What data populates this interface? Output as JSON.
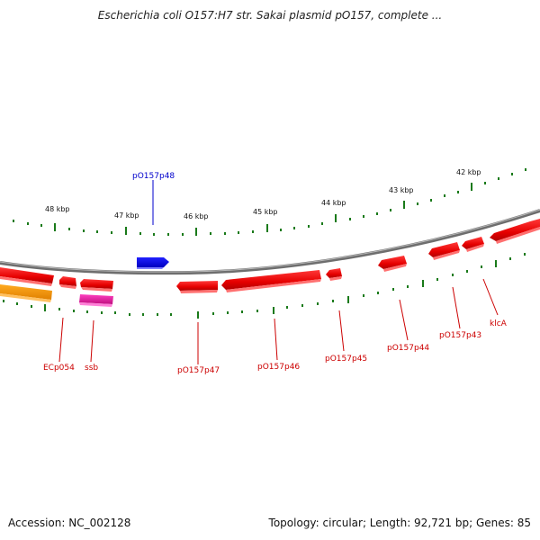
{
  "title": "Escherichia coli O157:H7 str. Sakai plasmid pO157, complete ...",
  "footer": {
    "accession": "Accession: NC_002128",
    "topology": "Topology: circular; Length: 92,721 bp; Genes: 85"
  },
  "colors": {
    "gene_forward": "#0000ee",
    "gene_reverse": "#ee0000",
    "gene_label_red": "#cc0000",
    "gene_label_blue": "#0000cc",
    "ssb_gene": "#e020a0",
    "orange_gene": "#ff9900",
    "backbone": "#888888",
    "ticks": "#1a7a1a"
  },
  "kbp_labels": [
    {
      "id": "kbp-42",
      "label": "42 kbp"
    },
    {
      "id": "kbp-43",
      "label": "43 kbp"
    },
    {
      "id": "kbp-44",
      "label": "44 kbp"
    },
    {
      "id": "kbp-45",
      "label": "45 kbp"
    },
    {
      "id": "kbp-46",
      "label": "46 kbp"
    },
    {
      "id": "kbp-47",
      "label": "47 kbp"
    },
    {
      "id": "kbp-48",
      "label": "48 kbp"
    }
  ],
  "gene_labels": [
    {
      "id": "pO157p48",
      "label": "pO157p48",
      "strand": "forward"
    },
    {
      "id": "ECp054",
      "label": "ECp054",
      "strand": "reverse"
    },
    {
      "id": "ssb",
      "label": "ssb",
      "strand": "reverse"
    },
    {
      "id": "pO157p47",
      "label": "pO157p47",
      "strand": "reverse"
    },
    {
      "id": "pO157p46",
      "label": "pO157p46",
      "strand": "reverse"
    },
    {
      "id": "pO157p45",
      "label": "pO157p45",
      "strand": "reverse"
    },
    {
      "id": "pO157p44",
      "label": "pO157p44",
      "strand": "reverse"
    },
    {
      "id": "pO157p43",
      "label": "pO157p43",
      "strand": "reverse"
    },
    {
      "id": "klcA",
      "label": "klcA",
      "strand": "reverse"
    }
  ]
}
